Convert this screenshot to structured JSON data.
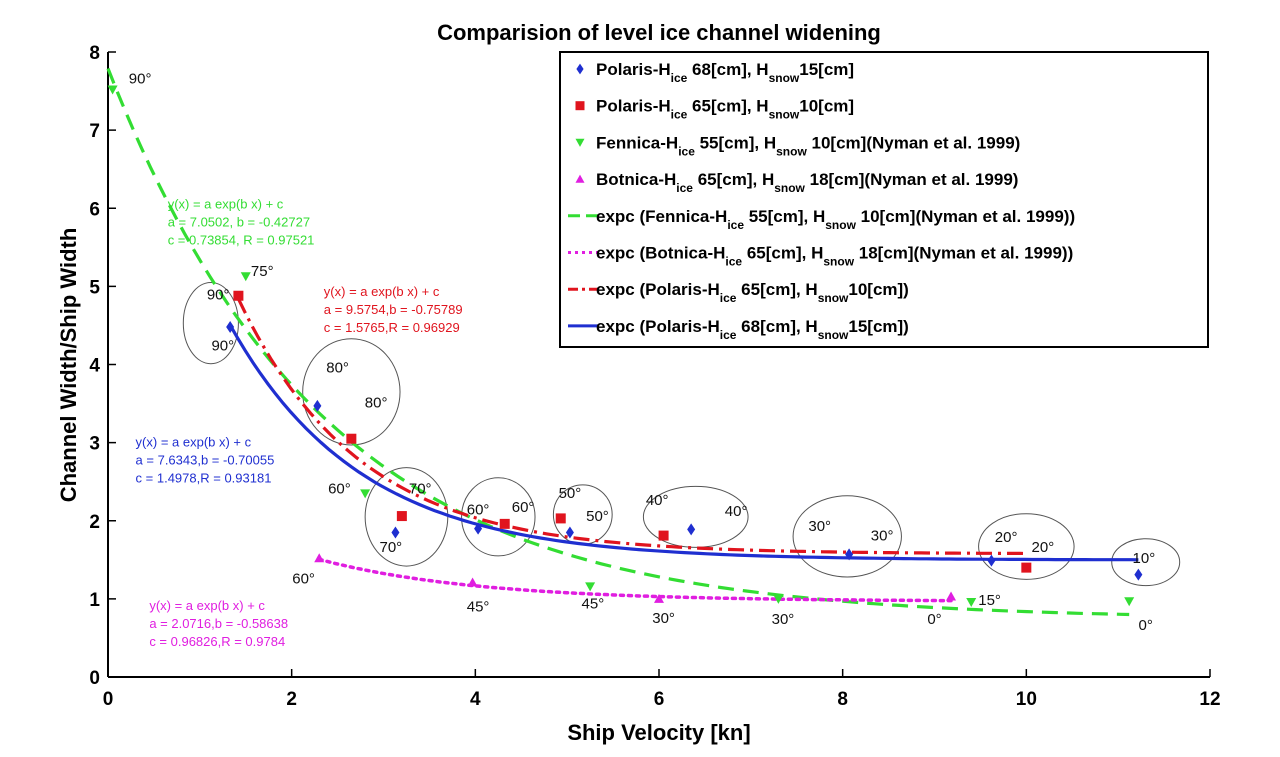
{
  "chart_data": {
    "type": "scatter",
    "title": "Comparision of level ice channel widening",
    "xlabel": "Ship Velocity [kn]",
    "ylabel": "Channel Width/Ship Width",
    "xlim": [
      0,
      12
    ],
    "ylim": [
      0,
      8
    ],
    "xticks": [
      0,
      2,
      4,
      6,
      8,
      10,
      12
    ],
    "yticks": [
      0,
      1,
      2,
      3,
      4,
      5,
      6,
      7,
      8
    ],
    "grid": false,
    "legend_position": "top-right",
    "series": [
      {
        "key": "polaris68",
        "legend": [
          "Polaris-H",
          "ice",
          " 68[cm], H",
          "snow",
          "15[cm]"
        ],
        "marker": "diamond",
        "color": "#1f2fd0",
        "points": [
          [
            1.33,
            4.48
          ],
          [
            2.28,
            3.47
          ],
          [
            3.13,
            1.85
          ],
          [
            4.03,
            1.9
          ],
          [
            5.03,
            1.85
          ],
          [
            6.35,
            1.89
          ],
          [
            8.07,
            1.57
          ],
          [
            9.62,
            1.49
          ],
          [
            11.22,
            1.31
          ]
        ]
      },
      {
        "key": "polaris65",
        "legend": [
          "Polaris-H",
          "ice",
          " 65[cm], H",
          "snow",
          "10[cm]"
        ],
        "marker": "square",
        "color": "#e0141e",
        "points": [
          [
            1.42,
            4.88
          ],
          [
            2.65,
            3.05
          ],
          [
            3.2,
            2.06
          ],
          [
            4.32,
            1.96
          ],
          [
            4.93,
            2.03
          ],
          [
            6.05,
            1.81
          ],
          [
            10.0,
            1.4
          ]
        ]
      },
      {
        "key": "fennica",
        "legend": [
          "Fennica-H",
          "ice",
          " 55[cm], H",
          "snow",
          " 10[cm](Nyman et al. 1999)"
        ],
        "marker": "triangle-down",
        "color": "#33dd33",
        "points": [
          [
            0.05,
            7.52
          ],
          [
            1.5,
            5.13
          ],
          [
            2.8,
            2.35
          ],
          [
            5.25,
            1.16
          ],
          [
            7.3,
            1.0
          ],
          [
            9.4,
            0.96
          ],
          [
            11.12,
            0.97
          ]
        ]
      },
      {
        "key": "botnica",
        "legend": [
          "Botnica-H",
          "ice",
          " 65[cm], H",
          "snow",
          " 18[cm](Nyman et al. 1999)"
        ],
        "marker": "triangle-up",
        "color": "#e01ee0",
        "points": [
          [
            2.3,
            1.52
          ],
          [
            3.97,
            1.21
          ],
          [
            6.0,
            1.0
          ],
          [
            9.18,
            1.03
          ]
        ]
      }
    ],
    "fits": [
      {
        "key": "fit_fennica",
        "legend": [
          "expc (Fennica-H",
          "ice",
          " 55[cm], H",
          "snow",
          " 10[cm](Nyman et al. 1999))"
        ],
        "style": "dashed",
        "color": "#33dd33",
        "a": 7.0502,
        "b": -0.42727,
        "c": 0.73854,
        "R": 0.97521,
        "x_range": [
          0.0,
          11.12
        ],
        "equation_lines": [
          "y(x) = a exp(b x) + c",
          "a = 7.0502, b = -0.42727",
          "c = 0.73854, R = 0.97521"
        ]
      },
      {
        "key": "fit_botnica",
        "legend": [
          "expc (Botnica-H",
          "ice",
          " 65[cm], H",
          "snow",
          " 18[cm](Nyman et al. 1999))"
        ],
        "style": "dotted",
        "color": "#e01ee0",
        "a": 2.0716,
        "b": -0.58638,
        "c": 0.96826,
        "R": 0.9784,
        "x_range": [
          2.3,
          9.18
        ],
        "equation_lines": [
          "y(x) = a exp(b x) + c",
          "a = 2.0716,b = -0.58638",
          "c = 0.96826,R = 0.9784"
        ]
      },
      {
        "key": "fit_polaris65",
        "legend": [
          "expc (Polaris-H",
          "ice",
          " 65[cm], H",
          "snow",
          "10[cm])"
        ],
        "style": "dashdot",
        "color": "#e0141e",
        "a": 9.5754,
        "b": -0.75789,
        "c": 1.5765,
        "R": 0.96929,
        "x_range": [
          1.42,
          10.0
        ],
        "equation_lines": [
          "y(x) = a exp(b x) + c",
          "a = 9.5754,b = -0.75789",
          "c = 1.5765,R = 0.96929"
        ]
      },
      {
        "key": "fit_polaris68",
        "legend": [
          "expc (Polaris-H",
          "ice",
          " 68[cm], H",
          "snow",
          "15[cm])"
        ],
        "style": "solid",
        "color": "#1f2fd0",
        "a": 7.6343,
        "b": -0.70055,
        "c": 1.4978,
        "R": 0.93181,
        "x_range": [
          1.33,
          11.22
        ],
        "equation_lines": [
          "y(x) = a exp(b x) + c",
          "a = 7.6343,b = -0.70055",
          "c = 1.4978,R = 0.93181"
        ]
      }
    ],
    "angle_annotations": [
      {
        "text": "90°",
        "x": 0.35,
        "y": 7.6
      },
      {
        "text": "75°",
        "x": 1.68,
        "y": 5.13
      },
      {
        "text": "90°",
        "x": 1.2,
        "y": 4.83
      },
      {
        "text": "90°",
        "x": 1.25,
        "y": 4.18
      },
      {
        "text": "80°",
        "x": 2.5,
        "y": 3.9
      },
      {
        "text": "80°",
        "x": 2.92,
        "y": 3.45
      },
      {
        "text": "70°",
        "x": 3.4,
        "y": 2.35
      },
      {
        "text": "60°",
        "x": 2.52,
        "y": 2.35
      },
      {
        "text": "70°",
        "x": 3.08,
        "y": 1.6
      },
      {
        "text": "60°",
        "x": 4.03,
        "y": 2.08
      },
      {
        "text": "60°",
        "x": 4.52,
        "y": 2.11
      },
      {
        "text": "50°",
        "x": 5.03,
        "y": 2.29
      },
      {
        "text": "50°",
        "x": 5.33,
        "y": 2.0
      },
      {
        "text": "40°",
        "x": 5.98,
        "y": 2.2
      },
      {
        "text": "40°",
        "x": 6.84,
        "y": 2.06
      },
      {
        "text": "30°",
        "x": 7.75,
        "y": 1.87
      },
      {
        "text": "30°",
        "x": 8.43,
        "y": 1.75
      },
      {
        "text": "20°",
        "x": 9.78,
        "y": 1.73
      },
      {
        "text": "20°",
        "x": 10.18,
        "y": 1.6
      },
      {
        "text": "10°",
        "x": 11.28,
        "y": 1.46
      },
      {
        "text": "60°",
        "x": 2.13,
        "y": 1.2
      },
      {
        "text": "45°",
        "x": 4.03,
        "y": 0.84
      },
      {
        "text": "45°",
        "x": 5.28,
        "y": 0.88
      },
      {
        "text": "30°",
        "x": 6.05,
        "y": 0.69
      },
      {
        "text": "30°",
        "x": 7.35,
        "y": 0.68
      },
      {
        "text": "0°",
        "x": 9.0,
        "y": 0.68
      },
      {
        "text": "15°",
        "x": 9.6,
        "y": 0.92
      },
      {
        "text": "0°",
        "x": 11.3,
        "y": 0.6
      }
    ],
    "ellipses": [
      {
        "cx": 1.12,
        "cy": 4.53,
        "rx": 0.3,
        "ry": 0.52
      },
      {
        "cx": 2.65,
        "cy": 3.65,
        "rx": 0.53,
        "ry": 0.68
      },
      {
        "cx": 3.25,
        "cy": 2.05,
        "rx": 0.45,
        "ry": 0.63
      },
      {
        "cx": 4.25,
        "cy": 2.05,
        "rx": 0.4,
        "ry": 0.5
      },
      {
        "cx": 5.17,
        "cy": 2.08,
        "rx": 0.32,
        "ry": 0.38
      },
      {
        "cx": 6.4,
        "cy": 2.05,
        "rx": 0.57,
        "ry": 0.39
      },
      {
        "cx": 8.05,
        "cy": 1.8,
        "rx": 0.59,
        "ry": 0.52
      },
      {
        "cx": 10.0,
        "cy": 1.67,
        "rx": 0.52,
        "ry": 0.42
      },
      {
        "cx": 11.3,
        "cy": 1.47,
        "rx": 0.37,
        "ry": 0.3
      }
    ]
  }
}
